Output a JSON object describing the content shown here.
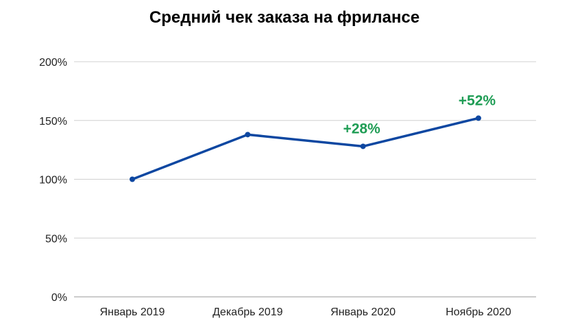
{
  "chart_data": {
    "type": "line",
    "title": "Средний чек заказа на фрилансе",
    "xlabel": "",
    "ylabel": "",
    "categories": [
      "Январь 2019",
      "Декабрь 2019",
      "Январь 2020",
      "Ноябрь 2020"
    ],
    "series": [
      {
        "name": "Средний чек",
        "values": [
          100,
          138,
          128,
          152
        ],
        "color": "#0d47a1"
      }
    ],
    "ylim": [
      0,
      200
    ],
    "yticks": [
      0,
      50,
      100,
      150,
      200
    ],
    "ytick_labels": [
      "0%",
      "50%",
      "100%",
      "150%",
      "200%"
    ],
    "grid": true,
    "annotations": [
      {
        "category_index": 2,
        "text": "+28%",
        "color": "#1f9d55"
      },
      {
        "category_index": 3,
        "text": "+52%",
        "color": "#1f9d55"
      }
    ]
  }
}
